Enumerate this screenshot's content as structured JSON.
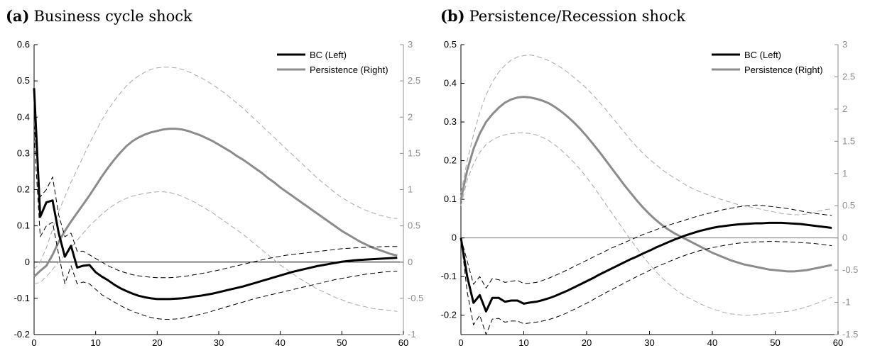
{
  "chart_data": [
    {
      "type": "line",
      "panel_label": "(a)",
      "title": "Business cycle shock",
      "x": [
        0,
        1,
        2,
        3,
        4,
        5,
        6,
        7,
        8,
        9,
        10,
        11,
        12,
        13,
        14,
        15,
        16,
        17,
        18,
        19,
        20,
        21,
        22,
        23,
        24,
        25,
        26,
        27,
        28,
        29,
        30,
        31,
        32,
        33,
        34,
        35,
        36,
        37,
        38,
        39,
        40,
        41,
        42,
        43,
        44,
        45,
        46,
        47,
        48,
        49,
        50,
        51,
        52,
        53,
        54,
        55,
        56,
        57,
        58,
        59
      ],
      "xlim": [
        0,
        60
      ],
      "xticks": [
        "0",
        "10",
        "20",
        "30",
        "40",
        "50",
        "60"
      ],
      "ylim_left": [
        -0.2,
        0.6
      ],
      "yticks_left": [
        "-0.2",
        "-0.1",
        "0",
        "0.1",
        "0.2",
        "0.3",
        "0.4",
        "0.5",
        "0.6"
      ],
      "ylim_right": [
        -1,
        3
      ],
      "yticks_right": [
        "-1",
        "-0.5",
        "0",
        "0.5",
        "1",
        "1.5",
        "2",
        "2.5",
        "3"
      ],
      "zero_line": true,
      "legend_position": "top-right",
      "legend": [
        "BC (Left)",
        "Persistence (Right)"
      ],
      "series": [
        {
          "name": "BC (Left)",
          "axis": "left",
          "color": "#000000",
          "style": "solid",
          "values": [
            0.48,
            0.125,
            0.165,
            0.17,
            0.08,
            0.015,
            0.045,
            -0.015,
            -0.01,
            -0.008,
            -0.028,
            -0.04,
            -0.05,
            -0.062,
            -0.072,
            -0.08,
            -0.087,
            -0.093,
            -0.097,
            -0.1,
            -0.102,
            -0.102,
            -0.102,
            -0.101,
            -0.1,
            -0.098,
            -0.095,
            -0.093,
            -0.09,
            -0.087,
            -0.083,
            -0.079,
            -0.075,
            -0.071,
            -0.067,
            -0.062,
            -0.057,
            -0.052,
            -0.047,
            -0.042,
            -0.037,
            -0.032,
            -0.027,
            -0.023,
            -0.019,
            -0.015,
            -0.011,
            -0.008,
            -0.005,
            -0.002,
            0.001,
            0.003,
            0.005,
            0.006,
            0.007,
            0.008,
            0.009,
            0.01,
            0.011,
            0.012
          ]
        },
        {
          "name": "BC upper band",
          "axis": "left",
          "color": "#000000",
          "style": "dashed",
          "values": [
            0.38,
            0.18,
            0.2,
            0.235,
            0.13,
            0.07,
            0.08,
            0.03,
            0.03,
            0.02,
            0.01,
            0.0,
            -0.01,
            -0.018,
            -0.025,
            -0.03,
            -0.035,
            -0.038,
            -0.04,
            -0.042,
            -0.043,
            -0.043,
            -0.043,
            -0.042,
            -0.04,
            -0.038,
            -0.035,
            -0.032,
            -0.029,
            -0.026,
            -0.022,
            -0.018,
            -0.014,
            -0.01,
            -0.006,
            -0.002,
            0.002,
            0.006,
            0.01,
            0.013,
            0.016,
            0.019,
            0.021,
            0.023,
            0.025,
            0.027,
            0.029,
            0.031,
            0.033,
            0.035,
            0.037,
            0.038,
            0.039,
            0.04,
            0.041,
            0.042,
            0.042,
            0.043,
            0.043,
            0.043
          ]
        },
        {
          "name": "BC lower band",
          "axis": "left",
          "color": "#000000",
          "style": "dashed",
          "values": [
            0.35,
            0.07,
            0.1,
            0.11,
            0.02,
            -0.06,
            -0.01,
            -0.06,
            -0.055,
            -0.06,
            -0.075,
            -0.09,
            -0.1,
            -0.11,
            -0.12,
            -0.128,
            -0.136,
            -0.142,
            -0.148,
            -0.153,
            -0.156,
            -0.158,
            -0.158,
            -0.157,
            -0.155,
            -0.152,
            -0.148,
            -0.144,
            -0.14,
            -0.135,
            -0.13,
            -0.125,
            -0.12,
            -0.115,
            -0.11,
            -0.105,
            -0.1,
            -0.096,
            -0.092,
            -0.088,
            -0.084,
            -0.08,
            -0.076,
            -0.072,
            -0.068,
            -0.064,
            -0.06,
            -0.056,
            -0.052,
            -0.048,
            -0.045,
            -0.042,
            -0.039,
            -0.036,
            -0.033,
            -0.031,
            -0.029,
            -0.027,
            -0.026,
            -0.025
          ]
        },
        {
          "name": "Persistence (Right)",
          "axis": "right",
          "color": "#8c8c8c",
          "style": "solid",
          "values": [
            -0.2,
            -0.12,
            -0.05,
            0.1,
            0.28,
            0.43,
            0.56,
            0.68,
            0.8,
            0.92,
            1.05,
            1.18,
            1.3,
            1.41,
            1.51,
            1.6,
            1.67,
            1.72,
            1.76,
            1.79,
            1.81,
            1.83,
            1.84,
            1.84,
            1.83,
            1.81,
            1.78,
            1.75,
            1.71,
            1.67,
            1.62,
            1.57,
            1.52,
            1.46,
            1.41,
            1.35,
            1.29,
            1.23,
            1.16,
            1.1,
            1.03,
            0.97,
            0.91,
            0.85,
            0.79,
            0.73,
            0.67,
            0.61,
            0.55,
            0.49,
            0.43,
            0.38,
            0.33,
            0.28,
            0.24,
            0.2,
            0.17,
            0.14,
            0.11,
            0.09
          ]
        },
        {
          "name": "Persistence upper band",
          "axis": "right",
          "color": "#a8a8a8",
          "style": "dashed",
          "values": [
            -0.1,
            0.0,
            0.2,
            0.45,
            0.7,
            0.9,
            1.1,
            1.28,
            1.46,
            1.64,
            1.8,
            1.96,
            2.1,
            2.22,
            2.33,
            2.43,
            2.51,
            2.57,
            2.62,
            2.66,
            2.68,
            2.69,
            2.69,
            2.68,
            2.66,
            2.63,
            2.59,
            2.55,
            2.5,
            2.45,
            2.39,
            2.33,
            2.26,
            2.19,
            2.12,
            2.04,
            1.96,
            1.88,
            1.8,
            1.72,
            1.64,
            1.56,
            1.48,
            1.4,
            1.32,
            1.24,
            1.16,
            1.09,
            1.02,
            0.95,
            0.89,
            0.84,
            0.79,
            0.75,
            0.71,
            0.68,
            0.65,
            0.63,
            0.61,
            0.6
          ]
        },
        {
          "name": "Persistence lower band",
          "axis": "right",
          "color": "#a8a8a8",
          "style": "dashed",
          "values": [
            -0.3,
            -0.28,
            -0.2,
            -0.1,
            0.0,
            0.1,
            0.2,
            0.3,
            0.4,
            0.5,
            0.58,
            0.66,
            0.73,
            0.79,
            0.84,
            0.88,
            0.91,
            0.93,
            0.95,
            0.96,
            0.97,
            0.97,
            0.96,
            0.94,
            0.91,
            0.87,
            0.83,
            0.78,
            0.73,
            0.68,
            0.62,
            0.56,
            0.5,
            0.44,
            0.38,
            0.31,
            0.24,
            0.17,
            0.1,
            0.03,
            -0.04,
            -0.1,
            -0.16,
            -0.22,
            -0.27,
            -0.32,
            -0.37,
            -0.41,
            -0.45,
            -0.49,
            -0.52,
            -0.55,
            -0.58,
            -0.6,
            -0.62,
            -0.64,
            -0.65,
            -0.66,
            -0.67,
            -0.68
          ]
        }
      ]
    },
    {
      "type": "line",
      "panel_label": "(b)",
      "title": "Persistence/Recession shock",
      "x": [
        0,
        1,
        2,
        3,
        4,
        5,
        6,
        7,
        8,
        9,
        10,
        11,
        12,
        13,
        14,
        15,
        16,
        17,
        18,
        19,
        20,
        21,
        22,
        23,
        24,
        25,
        26,
        27,
        28,
        29,
        30,
        31,
        32,
        33,
        34,
        35,
        36,
        37,
        38,
        39,
        40,
        41,
        42,
        43,
        44,
        45,
        46,
        47,
        48,
        49,
        50,
        51,
        52,
        53,
        54,
        55,
        56,
        57,
        58,
        59
      ],
      "xlim": [
        0,
        60
      ],
      "xticks": [
        "0",
        "10",
        "20",
        "30",
        "40",
        "50",
        "60"
      ],
      "ylim_left": [
        -0.25,
        0.5
      ],
      "yticks_left": [
        "-0.2",
        "-0.1",
        "0",
        "0.1",
        "0.2",
        "0.3",
        "0.4",
        "0.5"
      ],
      "ylim_right": [
        -1.5,
        3
      ],
      "yticks_right": [
        "-1.5",
        "-1",
        "-0.5",
        "0",
        "0.5",
        "1",
        "1.5",
        "2",
        "2.5",
        "3"
      ],
      "zero_line": true,
      "legend_position": "top-right",
      "legend": [
        "BC (Left)",
        "Persistence (Right)"
      ],
      "series": [
        {
          "name": "BC (Left)",
          "axis": "left",
          "color": "#000000",
          "style": "solid",
          "values": [
            0.0,
            -0.1,
            -0.168,
            -0.148,
            -0.19,
            -0.155,
            -0.155,
            -0.165,
            -0.162,
            -0.162,
            -0.17,
            -0.167,
            -0.165,
            -0.161,
            -0.156,
            -0.15,
            -0.143,
            -0.136,
            -0.128,
            -0.12,
            -0.112,
            -0.104,
            -0.095,
            -0.087,
            -0.079,
            -0.071,
            -0.063,
            -0.055,
            -0.048,
            -0.04,
            -0.033,
            -0.025,
            -0.018,
            -0.011,
            -0.004,
            0.002,
            0.008,
            0.013,
            0.018,
            0.022,
            0.026,
            0.029,
            0.031,
            0.033,
            0.035,
            0.036,
            0.037,
            0.038,
            0.038,
            0.039,
            0.039,
            0.039,
            0.038,
            0.037,
            0.036,
            0.034,
            0.032,
            0.03,
            0.028,
            0.026
          ]
        },
        {
          "name": "BC upper band",
          "axis": "left",
          "color": "#000000",
          "style": "dashed",
          "values": [
            0.0,
            -0.06,
            -0.12,
            -0.1,
            -0.13,
            -0.105,
            -0.108,
            -0.115,
            -0.112,
            -0.11,
            -0.118,
            -0.117,
            -0.115,
            -0.11,
            -0.104,
            -0.097,
            -0.09,
            -0.082,
            -0.074,
            -0.066,
            -0.058,
            -0.05,
            -0.042,
            -0.034,
            -0.026,
            -0.019,
            -0.012,
            -0.005,
            0.002,
            0.009,
            0.015,
            0.021,
            0.027,
            0.033,
            0.038,
            0.043,
            0.048,
            0.053,
            0.058,
            0.062,
            0.066,
            0.07,
            0.074,
            0.077,
            0.08,
            0.082,
            0.084,
            0.085,
            0.084,
            0.082,
            0.08,
            0.078,
            0.076,
            0.073,
            0.07,
            0.067,
            0.064,
            0.062,
            0.06,
            0.058
          ]
        },
        {
          "name": "BC lower band",
          "axis": "left",
          "color": "#000000",
          "style": "dashed",
          "values": [
            0.0,
            -0.14,
            -0.225,
            -0.2,
            -0.25,
            -0.21,
            -0.208,
            -0.218,
            -0.215,
            -0.215,
            -0.222,
            -0.22,
            -0.218,
            -0.215,
            -0.211,
            -0.206,
            -0.2,
            -0.193,
            -0.185,
            -0.177,
            -0.169,
            -0.16,
            -0.151,
            -0.142,
            -0.134,
            -0.125,
            -0.117,
            -0.108,
            -0.1,
            -0.092,
            -0.084,
            -0.076,
            -0.069,
            -0.062,
            -0.055,
            -0.049,
            -0.043,
            -0.038,
            -0.033,
            -0.029,
            -0.025,
            -0.022,
            -0.019,
            -0.016,
            -0.014,
            -0.012,
            -0.011,
            -0.01,
            -0.01,
            -0.009,
            -0.009,
            -0.01,
            -0.01,
            -0.011,
            -0.012,
            -0.013,
            -0.014,
            -0.016,
            -0.018,
            -0.02
          ]
        },
        {
          "name": "Persistence (Right)",
          "axis": "right",
          "color": "#8c8c8c",
          "style": "solid",
          "values": [
            0.6,
            1.05,
            1.38,
            1.62,
            1.8,
            1.92,
            2.02,
            2.1,
            2.15,
            2.18,
            2.19,
            2.18,
            2.16,
            2.13,
            2.09,
            2.03,
            1.96,
            1.88,
            1.79,
            1.69,
            1.58,
            1.46,
            1.34,
            1.21,
            1.08,
            0.95,
            0.82,
            0.7,
            0.58,
            0.47,
            0.37,
            0.28,
            0.2,
            0.13,
            0.07,
            0.02,
            -0.03,
            -0.08,
            -0.13,
            -0.18,
            -0.23,
            -0.27,
            -0.31,
            -0.35,
            -0.38,
            -0.41,
            -0.43,
            -0.45,
            -0.47,
            -0.49,
            -0.5,
            -0.51,
            -0.52,
            -0.52,
            -0.51,
            -0.5,
            -0.48,
            -0.46,
            -0.44,
            -0.42
          ]
        },
        {
          "name": "Persistence upper band",
          "axis": "right",
          "color": "#a8a8a8",
          "style": "dashed",
          "values": [
            0.7,
            1.2,
            1.6,
            1.95,
            2.22,
            2.42,
            2.57,
            2.68,
            2.76,
            2.81,
            2.83,
            2.84,
            2.82,
            2.79,
            2.75,
            2.7,
            2.64,
            2.57,
            2.49,
            2.41,
            2.32,
            2.22,
            2.11,
            2.0,
            1.88,
            1.76,
            1.64,
            1.52,
            1.41,
            1.31,
            1.22,
            1.14,
            1.06,
            0.99,
            0.93,
            0.87,
            0.81,
            0.76,
            0.72,
            0.68,
            0.64,
            0.61,
            0.58,
            0.55,
            0.52,
            0.5,
            0.48,
            0.46,
            0.44,
            0.42,
            0.4,
            0.38,
            0.37,
            0.36,
            0.36,
            0.37,
            0.39,
            0.42,
            0.44,
            0.45
          ]
        },
        {
          "name": "Persistence lower band",
          "axis": "right",
          "color": "#a8a8a8",
          "style": "dashed",
          "values": [
            0.5,
            0.9,
            1.15,
            1.33,
            1.45,
            1.52,
            1.57,
            1.6,
            1.62,
            1.63,
            1.63,
            1.62,
            1.6,
            1.56,
            1.51,
            1.44,
            1.36,
            1.27,
            1.17,
            1.06,
            0.94,
            0.81,
            0.67,
            0.53,
            0.39,
            0.25,
            0.11,
            -0.03,
            -0.16,
            -0.29,
            -0.41,
            -0.52,
            -0.62,
            -0.71,
            -0.79,
            -0.86,
            -0.92,
            -0.97,
            -1.02,
            -1.06,
            -1.1,
            -1.13,
            -1.16,
            -1.18,
            -1.19,
            -1.2,
            -1.2,
            -1.19,
            -1.18,
            -1.17,
            -1.16,
            -1.15,
            -1.14,
            -1.12,
            -1.1,
            -1.07,
            -1.04,
            -1.0,
            -0.96,
            -0.92
          ]
        }
      ]
    }
  ]
}
